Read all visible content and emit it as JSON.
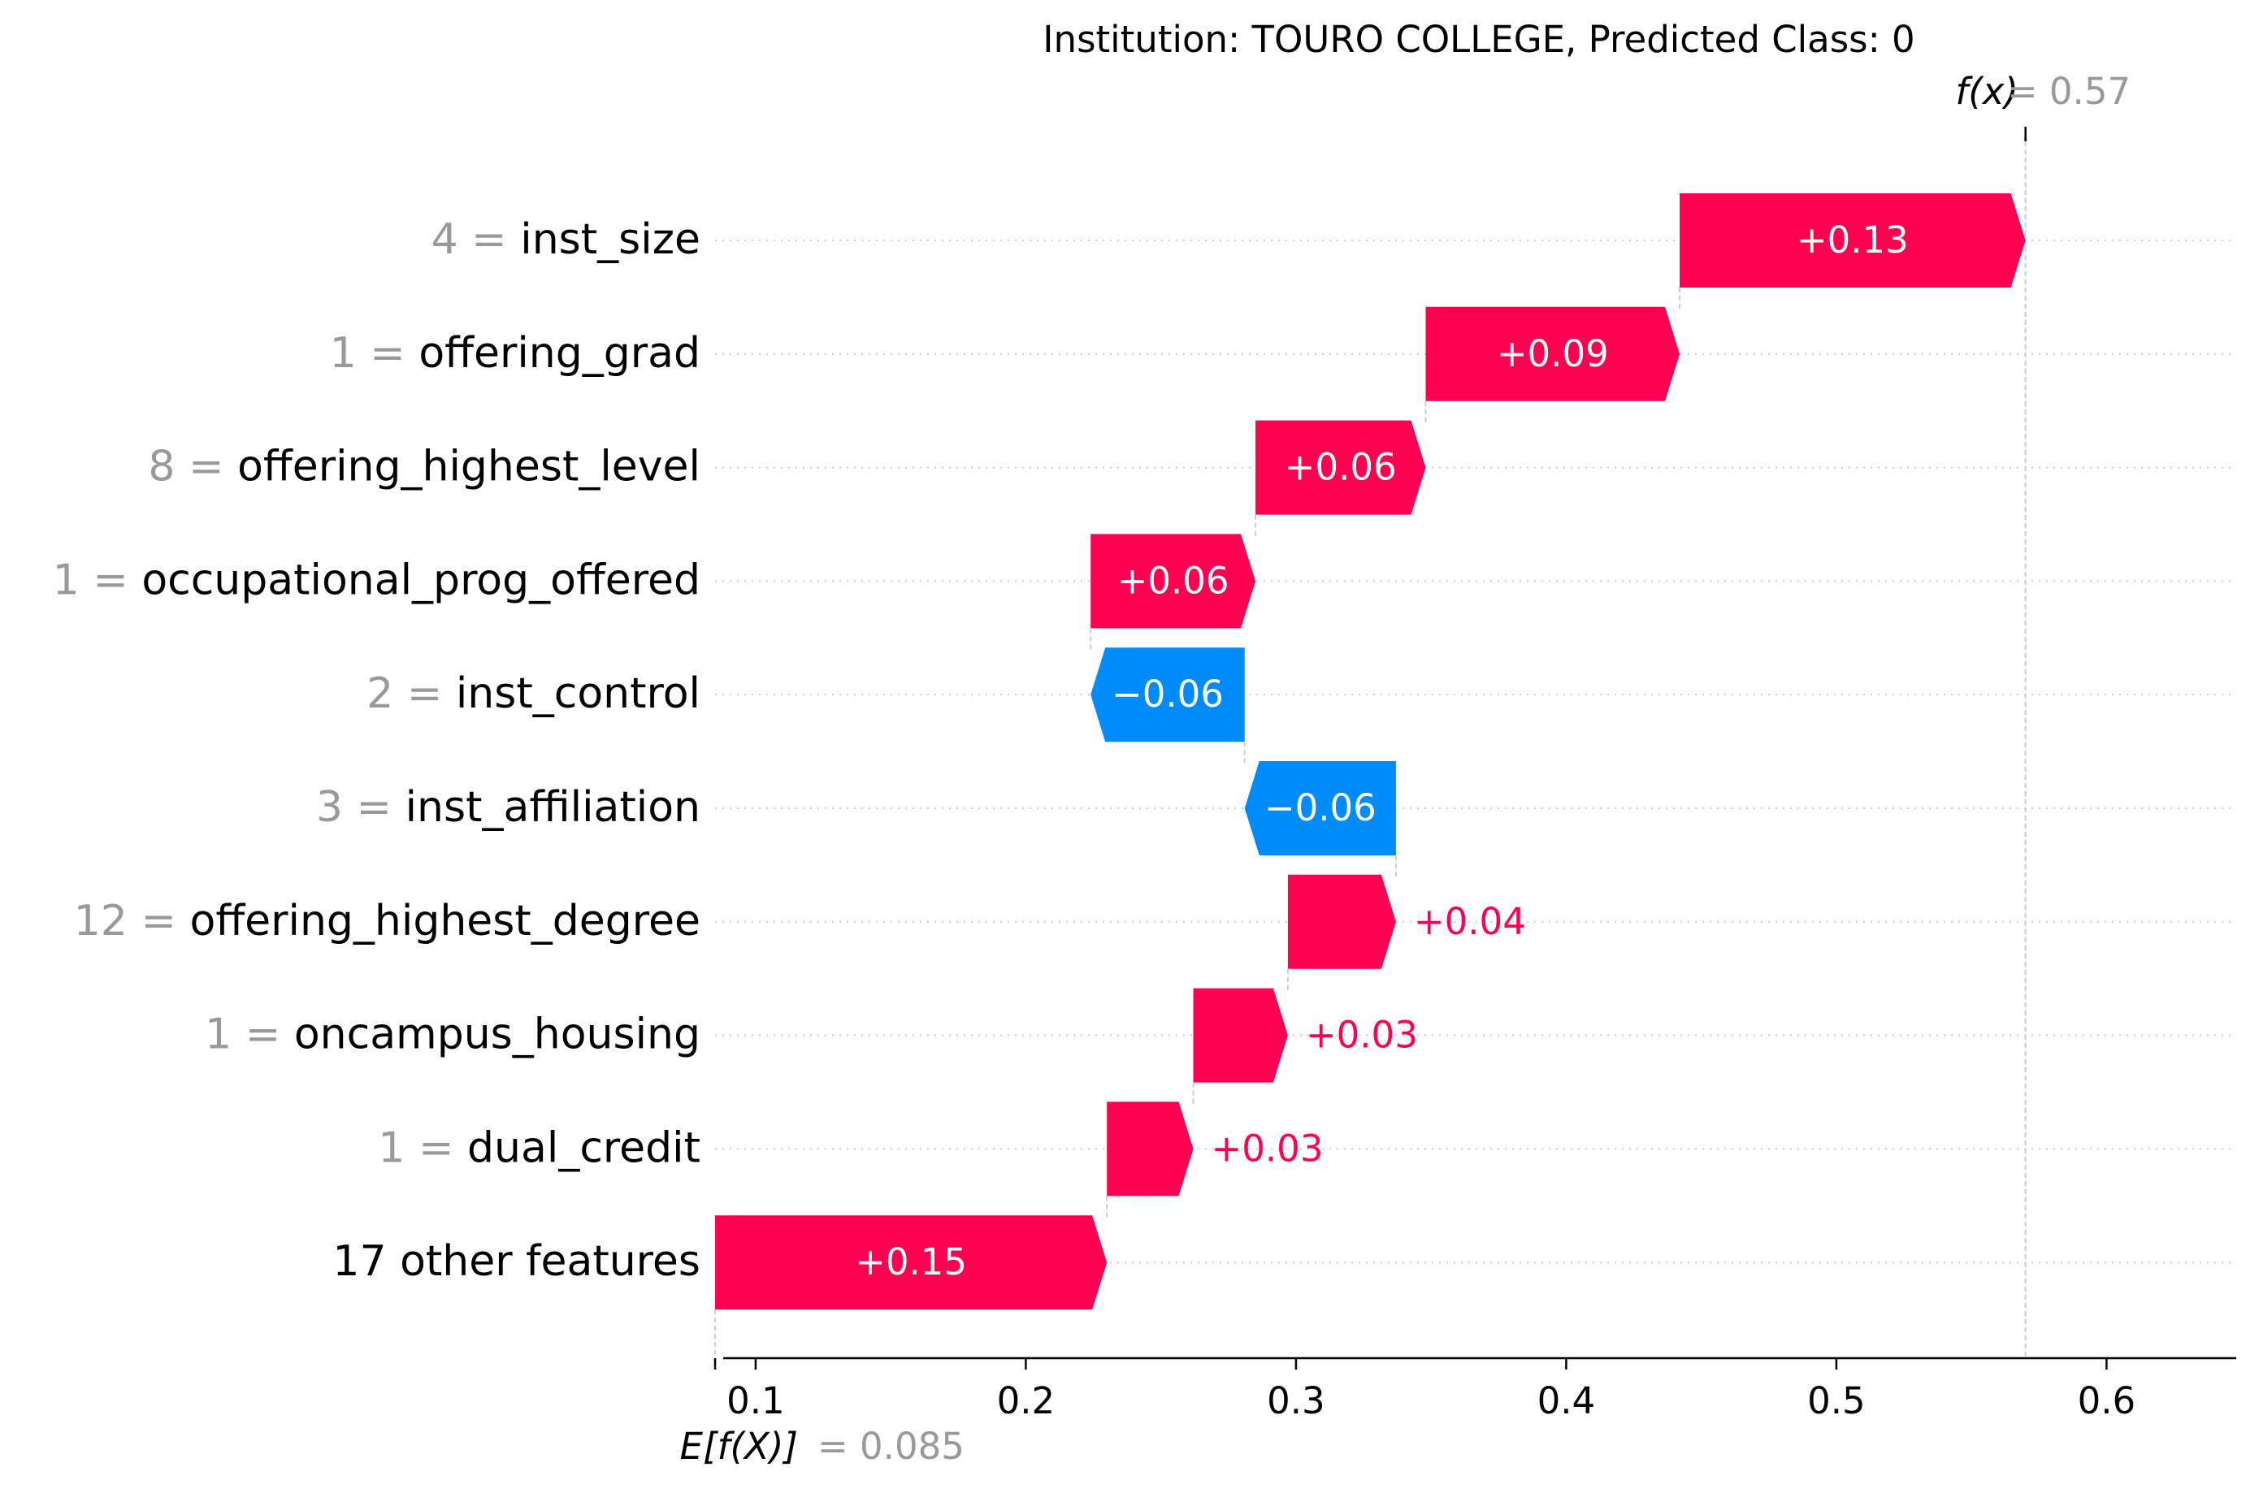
{
  "chart_data": {
    "type": "waterfall",
    "title": "Institution: TOURO COLLEGE, Predicted Class: 0",
    "fx_label": "f(x)",
    "fx_value_text": "= 0.57",
    "fx_value": 0.57,
    "ex_label": "E[f(X)]",
    "ex_value_text": "= 0.085",
    "ex_value": 0.085,
    "xlim": [
      0.088,
      0.648
    ],
    "xticks": [
      {
        "value": 0.1,
        "label": "0.1"
      },
      {
        "value": 0.2,
        "label": "0.2"
      },
      {
        "value": 0.3,
        "label": "0.3"
      },
      {
        "value": 0.4,
        "label": "0.4"
      },
      {
        "value": 0.5,
        "label": "0.5"
      },
      {
        "value": 0.6,
        "label": "0.6"
      }
    ],
    "features": [
      {
        "value_label": "4 =",
        "name": "inst_size",
        "start": 0.442,
        "end": 0.57,
        "label": "+0.13"
      },
      {
        "value_label": "1 =",
        "name": "offering_grad",
        "start": 0.348,
        "end": 0.442,
        "label": "+0.09"
      },
      {
        "value_label": "8 =",
        "name": "offering_highest_level",
        "start": 0.285,
        "end": 0.348,
        "label": "+0.06"
      },
      {
        "value_label": "1 =",
        "name": "occupational_prog_offered",
        "start": 0.224,
        "end": 0.285,
        "label": "+0.06"
      },
      {
        "value_label": "2 =",
        "name": "inst_control",
        "start": 0.281,
        "end": 0.224,
        "label": "−0.06"
      },
      {
        "value_label": "3 =",
        "name": "inst_affiliation",
        "start": 0.337,
        "end": 0.281,
        "label": "−0.06"
      },
      {
        "value_label": "12 =",
        "name": "offering_highest_degree",
        "start": 0.297,
        "end": 0.337,
        "label": "+0.04"
      },
      {
        "value_label": "1 =",
        "name": "oncampus_housing",
        "start": 0.262,
        "end": 0.297,
        "label": "+0.03"
      },
      {
        "value_label": "1 =",
        "name": "dual_credit",
        "start": 0.23,
        "end": 0.262,
        "label": "+0.03"
      },
      {
        "value_label": "",
        "name": "17 other features",
        "start": 0.085,
        "end": 0.23,
        "label": "+0.15"
      }
    ],
    "colors": {
      "positive": "#ff0051",
      "negative": "#008bfb",
      "value_label": "#999999",
      "text": "#000000",
      "grid": "#cccccc",
      "bar_text": "#ffffff"
    }
  }
}
